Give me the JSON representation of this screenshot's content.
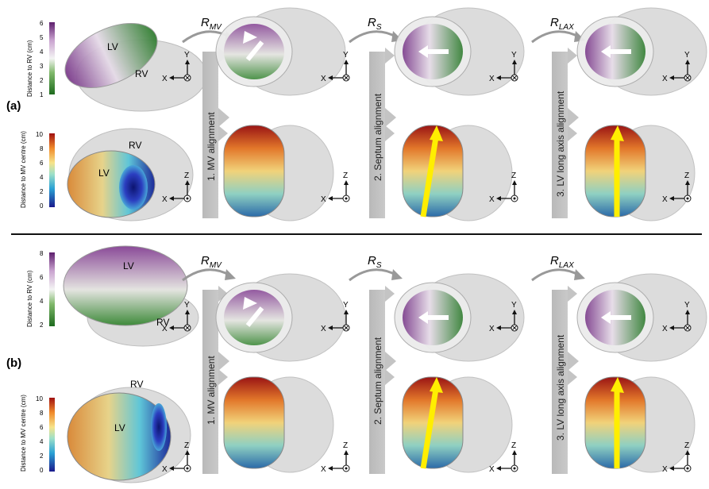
{
  "panels": [
    {
      "label": "(a)",
      "view_top": {
        "colorbar": {
          "title": "Distance to RV (cm)",
          "ticks": [
            "1",
            "2",
            "3",
            "4",
            "5",
            "6"
          ],
          "colors": [
            "#1e6b1e",
            "#7fb86a",
            "#f4f4f4",
            "#c9a3cf",
            "#5e1f6e"
          ]
        },
        "chamber_labels": [
          "LV",
          "RV"
        ]
      },
      "view_bottom": {
        "colorbar": {
          "title": "Distance to MV centre (cm)",
          "ticks": [
            "0",
            "2",
            "4",
            "6",
            "8",
            "10"
          ],
          "colors": [
            "#1a1a8c",
            "#2aa1d4",
            "#9ee0c8",
            "#f6e38a",
            "#f08a2a",
            "#a01010"
          ]
        },
        "chamber_labels": [
          "LV",
          "RV"
        ]
      }
    },
    {
      "label": "(b)",
      "view_top": {
        "colorbar": {
          "title": "Distance to RV (cm)",
          "ticks": [
            "2",
            "4",
            "6",
            "8"
          ],
          "colors": [
            "#1e6b1e",
            "#7fb86a",
            "#f4f4f4",
            "#c9a3cf",
            "#5e1f6e"
          ]
        },
        "chamber_labels": [
          "LV",
          "RV"
        ]
      },
      "view_bottom": {
        "colorbar": {
          "title": "Distance to MV centre (cm)",
          "ticks": [
            "0",
            "2",
            "4",
            "6",
            "8",
            "10"
          ],
          "colors": [
            "#1a1a8c",
            "#2aa1d4",
            "#9ee0c8",
            "#f6e38a",
            "#f08a2a",
            "#a01010"
          ]
        },
        "chamber_labels": [
          "LV",
          "RV"
        ]
      }
    }
  ],
  "steps": [
    {
      "rotation": "R",
      "subscript": "MV",
      "label": "1. MV alignment"
    },
    {
      "rotation": "R",
      "subscript": "S",
      "label": "2. Septum alignment"
    },
    {
      "rotation": "R",
      "subscript": "LAX",
      "label": "3. LV long axis alignment"
    }
  ],
  "axes": {
    "top": {
      "vertical": "Y",
      "horizontal": "X",
      "symbol": "into-page"
    },
    "bottom": {
      "vertical": "Z",
      "horizontal": "X",
      "symbol": "out-of-page"
    }
  },
  "arrow_colors": {
    "septum": "#ffffff",
    "long_axis": "#ffee00"
  },
  "shell_color": "#d9d9d9"
}
